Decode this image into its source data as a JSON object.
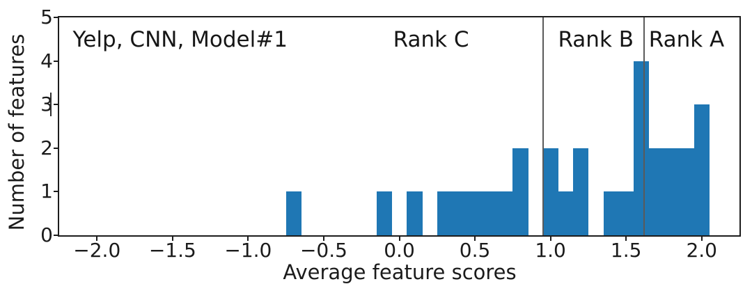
{
  "figure": {
    "background": "#ffffff",
    "frame_color": "#1c1c1c"
  },
  "chart_data": {
    "type": "bar",
    "subtype": "histogram",
    "title": "",
    "xlabel": "Average feature scores",
    "ylabel": "Number of features",
    "xlim": [
      -2.25,
      2.25
    ],
    "ylim": [
      0,
      5
    ],
    "grid": false,
    "legend": null,
    "bar_color": "#1f77b4",
    "vline_color": "#5a5a5a",
    "bin_width": 0.1,
    "bars": [
      {
        "x0": -0.75,
        "x1": -0.65,
        "count": 1
      },
      {
        "x0": -0.15,
        "x1": -0.05,
        "count": 1
      },
      {
        "x0": 0.05,
        "x1": 0.15,
        "count": 1
      },
      {
        "x0": 0.25,
        "x1": 0.35,
        "count": 1
      },
      {
        "x0": 0.35,
        "x1": 0.45,
        "count": 1
      },
      {
        "x0": 0.45,
        "x1": 0.55,
        "count": 1
      },
      {
        "x0": 0.55,
        "x1": 0.65,
        "count": 1
      },
      {
        "x0": 0.65,
        "x1": 0.75,
        "count": 1
      },
      {
        "x0": 0.75,
        "x1": 0.85,
        "count": 2
      },
      {
        "x0": 0.95,
        "x1": 1.05,
        "count": 2
      },
      {
        "x0": 1.05,
        "x1": 1.15,
        "count": 1
      },
      {
        "x0": 1.15,
        "x1": 1.25,
        "count": 2
      },
      {
        "x0": 1.35,
        "x1": 1.45,
        "count": 1
      },
      {
        "x0": 1.45,
        "x1": 1.55,
        "count": 1
      },
      {
        "x0": 1.55,
        "x1": 1.65,
        "count": 4
      },
      {
        "x0": 1.65,
        "x1": 1.75,
        "count": 2
      },
      {
        "x0": 1.75,
        "x1": 1.85,
        "count": 2
      },
      {
        "x0": 1.85,
        "x1": 1.95,
        "count": 2
      },
      {
        "x0": 1.95,
        "x1": 2.05,
        "count": 3
      }
    ],
    "vlines": [
      {
        "x": 0.95,
        "label": "rank-b-threshold"
      },
      {
        "x": 1.62,
        "label": "rank-a-threshold"
      }
    ],
    "annotations": [
      {
        "text": "Yelp, CNN, Model#1",
        "x": -2.16,
        "align": "left",
        "name": "annotation-model"
      },
      {
        "text": "Rank C",
        "x": 0.21,
        "align": "center",
        "name": "annotation-rank-c"
      },
      {
        "text": "Rank B",
        "x": 1.3,
        "align": "center",
        "name": "annotation-rank-b"
      },
      {
        "text": "Rank A",
        "x": 1.9,
        "align": "center",
        "name": "annotation-rank-a"
      }
    ],
    "xticks": {
      "values": [
        -2.0,
        -1.5,
        -1.0,
        -0.5,
        0.0,
        0.5,
        1.0,
        1.5,
        2.0
      ],
      "labels": [
        "−2.0",
        "−1.5",
        "−1.0",
        "−0.5",
        "0.0",
        "0.5",
        "1.0",
        "1.5",
        "2.0"
      ]
    },
    "yticks": {
      "values": [
        0,
        1,
        2,
        3,
        4,
        5
      ],
      "labels": [
        "0",
        "1",
        "2",
        "3",
        "4",
        "5"
      ]
    }
  }
}
